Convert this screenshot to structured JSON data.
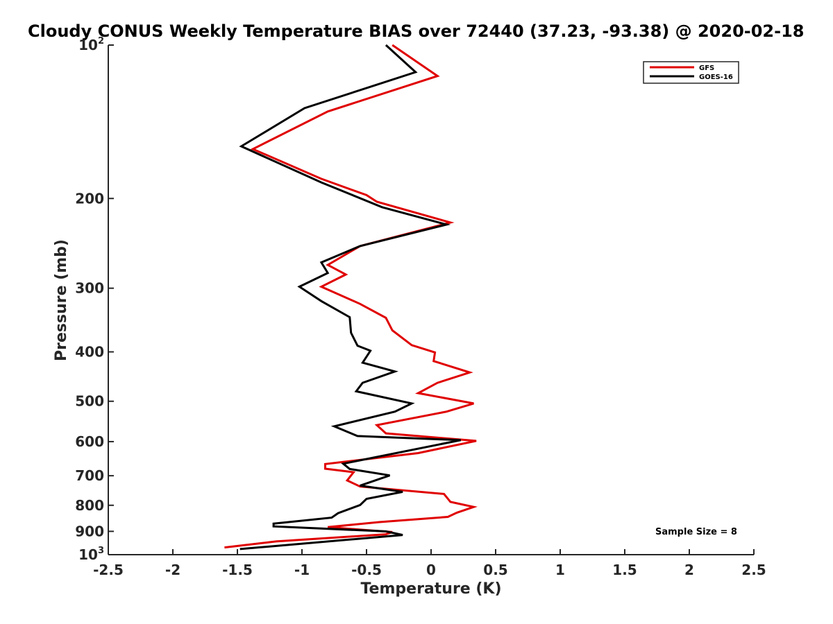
{
  "chart_data": {
    "type": "line",
    "title": "Cloudy CONUS Weekly Temperature BIAS over 72440 (37.23, -93.38) @ 2020-02-18",
    "xlabel": "Temperature (K)",
    "ylabel": "Pressure (mb)",
    "xlim": [
      -2.5,
      2.5
    ],
    "ylim": [
      100,
      1000
    ],
    "y_scale": "log",
    "y_reversed": true,
    "x_ticks": [
      "-2.5",
      "-2",
      "-1.5",
      "-1",
      "-0.5",
      "0",
      "0.5",
      "1",
      "1.5",
      "2",
      "2.5"
    ],
    "x_tick_values": [
      -2.5,
      -2,
      -1.5,
      -1,
      -0.5,
      0,
      0.5,
      1,
      1.5,
      2,
      2.5
    ],
    "y_ticks": [
      {
        "value": 100,
        "base": "10",
        "exp": "2"
      },
      {
        "value": 200,
        "text": "200"
      },
      {
        "value": 300,
        "text": "300"
      },
      {
        "value": 400,
        "text": "400"
      },
      {
        "value": 500,
        "text": "500"
      },
      {
        "value": 600,
        "text": "600"
      },
      {
        "value": 700,
        "text": "700"
      },
      {
        "value": 800,
        "text": "800"
      },
      {
        "value": 900,
        "text": "900"
      },
      {
        "value": 1000,
        "base": "10",
        "exp": "3"
      }
    ],
    "legend_position": "top-right",
    "grid": false,
    "annotation": "Sample Size = 8",
    "series": [
      {
        "name": "GFS",
        "color": "#e00000",
        "points": [
          [
            -0.3,
            100
          ],
          [
            0.05,
            115
          ],
          [
            -0.8,
            135
          ],
          [
            -1.38,
            160
          ],
          [
            -0.85,
            183
          ],
          [
            -0.5,
            197
          ],
          [
            -0.42,
            203
          ],
          [
            0.15,
            223
          ],
          [
            -0.55,
            248
          ],
          [
            -0.8,
            270
          ],
          [
            -0.66,
            282
          ],
          [
            -0.85,
            298
          ],
          [
            -0.55,
            322
          ],
          [
            -0.35,
            343
          ],
          [
            -0.3,
            363
          ],
          [
            -0.15,
            388
          ],
          [
            0.03,
            401
          ],
          [
            0.02,
            417
          ],
          [
            0.3,
            439
          ],
          [
            0.05,
            460
          ],
          [
            -0.1,
            482
          ],
          [
            0.33,
            505
          ],
          [
            0.12,
            524
          ],
          [
            -0.42,
            557
          ],
          [
            -0.35,
            578
          ],
          [
            0.35,
            598
          ],
          [
            -0.1,
            632
          ],
          [
            -0.82,
            664
          ],
          [
            -0.82,
            678
          ],
          [
            -0.6,
            689
          ],
          [
            -0.65,
            715
          ],
          [
            -0.55,
            735
          ],
          [
            0.1,
            760
          ],
          [
            0.15,
            788
          ],
          [
            0.33,
            806
          ],
          [
            0.2,
            827
          ],
          [
            0.13,
            843
          ],
          [
            -0.4,
            863
          ],
          [
            -0.8,
            883
          ],
          [
            -0.3,
            903
          ],
          [
            -0.35,
            912
          ],
          [
            -1.2,
            942
          ],
          [
            -1.6,
            968
          ]
        ]
      },
      {
        "name": "GOES-16",
        "color": "#000000",
        "points": [
          [
            -0.35,
            100
          ],
          [
            -0.12,
            113
          ],
          [
            -0.98,
            133
          ],
          [
            -1.47,
            158
          ],
          [
            -0.85,
            186
          ],
          [
            -0.38,
            208
          ],
          [
            0.12,
            225
          ],
          [
            -0.55,
            248
          ],
          [
            -0.85,
            267
          ],
          [
            -0.8,
            280
          ],
          [
            -1.02,
            298
          ],
          [
            -0.85,
            318
          ],
          [
            -0.63,
            342
          ],
          [
            -0.62,
            367
          ],
          [
            -0.57,
            389
          ],
          [
            -0.47,
            398
          ],
          [
            -0.53,
            420
          ],
          [
            -0.28,
            437
          ],
          [
            -0.53,
            460
          ],
          [
            -0.58,
            478
          ],
          [
            -0.15,
            505
          ],
          [
            -0.28,
            524
          ],
          [
            -0.75,
            560
          ],
          [
            -0.57,
            585
          ],
          [
            0.23,
            596
          ],
          [
            -0.68,
            663
          ],
          [
            -0.63,
            679
          ],
          [
            -0.32,
            699
          ],
          [
            -0.55,
            732
          ],
          [
            -0.22,
            753
          ],
          [
            -0.5,
            777
          ],
          [
            -0.55,
            799
          ],
          [
            -0.72,
            829
          ],
          [
            -0.77,
            846
          ],
          [
            -1.22,
            869
          ],
          [
            -1.22,
            880
          ],
          [
            -0.35,
            900
          ],
          [
            -0.22,
            915
          ],
          [
            -1.48,
            975
          ]
        ]
      }
    ]
  }
}
